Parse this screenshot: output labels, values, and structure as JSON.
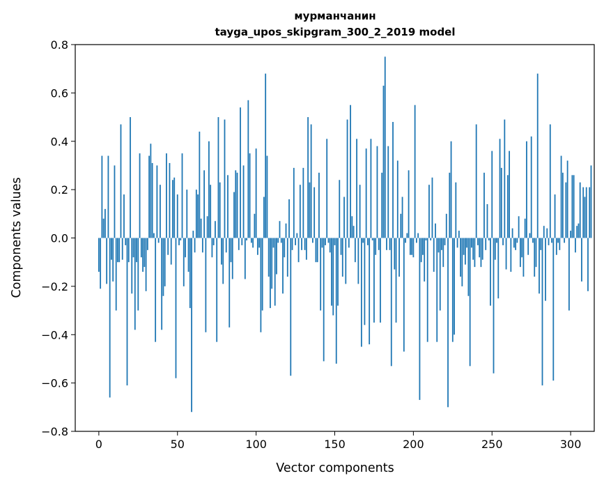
{
  "chart_data": {
    "type": "bar",
    "title_line1": "мурманчанин",
    "title_line2": "tayga_upos_skipgram_300_2_2019 model",
    "xlabel": "Vector components",
    "ylabel": "Components values",
    "xlim": [
      -15,
      315
    ],
    "ylim": [
      -0.8,
      0.8
    ],
    "xticks": [
      0,
      50,
      100,
      150,
      200,
      250,
      300
    ],
    "xtick_labels": [
      "0",
      "50",
      "100",
      "150",
      "200",
      "250",
      "300"
    ],
    "yticks": [
      -0.8,
      -0.6,
      -0.4,
      -0.2,
      0.0,
      0.2,
      0.4,
      0.6,
      0.8
    ],
    "ytick_labels": [
      "−0.8",
      "−0.6",
      "−0.4",
      "−0.2",
      "0.0",
      "0.2",
      "0.4",
      "0.6",
      "0.8"
    ],
    "bar_color": "#1f77b4",
    "grid": false,
    "values": [
      -0.14,
      -0.21,
      0.34,
      0.08,
      0.12,
      -0.19,
      0.34,
      -0.66,
      -0.09,
      -0.18,
      0.3,
      -0.3,
      -0.1,
      -0.1,
      0.47,
      -0.09,
      0.18,
      -0.03,
      -0.61,
      -0.1,
      0.5,
      -0.23,
      -0.08,
      -0.38,
      -0.1,
      -0.3,
      0.35,
      -0.08,
      -0.14,
      -0.12,
      -0.22,
      -0.05,
      0.34,
      0.39,
      0.31,
      0.02,
      -0.43,
      0.3,
      -0.02,
      0.22,
      -0.38,
      -0.24,
      -0.2,
      0.35,
      -0.07,
      0.31,
      -0.11,
      0.24,
      0.25,
      -0.58,
      0.18,
      -0.03,
      -0.01,
      0.35,
      -0.2,
      -0.08,
      0.2,
      -0.14,
      -0.29,
      -0.72,
      0.03,
      -0.06,
      0.2,
      0.18,
      0.44,
      0.08,
      -0.06,
      0.28,
      -0.39,
      0.09,
      0.4,
      0.22,
      -0.08,
      -0.03,
      0.07,
      -0.43,
      0.5,
      0.23,
      -0.11,
      -0.19,
      0.49,
      -0.06,
      0.26,
      -0.37,
      -0.1,
      -0.17,
      0.19,
      0.28,
      0.27,
      -0.05,
      0.54,
      -0.03,
      0.3,
      -0.17,
      -0.01,
      0.57,
      0.35,
      -0.02,
      -0.04,
      0.1,
      0.37,
      -0.07,
      -0.04,
      -0.39,
      -0.3,
      0.17,
      0.68,
      0.34,
      -0.16,
      -0.29,
      -0.21,
      -0.04,
      -0.28,
      -0.15,
      -0.02,
      0.07,
      -0.02,
      -0.23,
      -0.08,
      0.06,
      -0.16,
      0.16,
      -0.57,
      -0.05,
      0.29,
      -0.03,
      0.02,
      -0.1,
      0.22,
      -0.05,
      0.29,
      -0.05,
      -0.09,
      0.5,
      0.23,
      0.47,
      -0.02,
      0.21,
      -0.1,
      -0.1,
      0.27,
      -0.3,
      -0.04,
      -0.51,
      -0.03,
      0.41,
      -0.02,
      -0.06,
      -0.28,
      -0.32,
      -0.03,
      -0.52,
      -0.28,
      0.24,
      -0.07,
      -0.16,
      0.17,
      -0.19,
      0.49,
      -0.04,
      0.55,
      0.09,
      0.05,
      -0.1,
      0.41,
      -0.19,
      0.22,
      -0.45,
      -0.02,
      -0.36,
      0.37,
      -0.03,
      -0.44,
      0.41,
      -0.01,
      -0.35,
      -0.07,
      0.38,
      -0.05,
      -0.35,
      0.27,
      0.63,
      0.75,
      -0.05,
      0.38,
      -0.05,
      -0.53,
      0.48,
      -0.13,
      -0.35,
      0.32,
      -0.16,
      0.1,
      0.17,
      -0.47,
      -0.02,
      0.02,
      0.28,
      -0.07,
      -0.07,
      -0.08,
      0.55,
      -0.02,
      0.02,
      -0.67,
      -0.1,
      -0.07,
      -0.18,
      -0.01,
      -0.43,
      0.22,
      -0.01,
      0.25,
      -0.14,
      0.06,
      -0.43,
      -0.06,
      -0.3,
      -0.05,
      -0.12,
      -0.03,
      0.1,
      -0.7,
      0.27,
      0.4,
      -0.43,
      -0.4,
      0.23,
      -0.04,
      0.03,
      -0.16,
      -0.2,
      -0.07,
      -0.11,
      -0.04,
      -0.24,
      -0.53,
      -0.04,
      -0.09,
      -0.12,
      0.47,
      -0.03,
      -0.08,
      -0.12,
      -0.09,
      0.27,
      -0.05,
      0.14,
      -0.01,
      -0.28,
      0.36,
      -0.56,
      -0.09,
      -0.02,
      -0.25,
      0.41,
      0.29,
      -0.03,
      0.49,
      -0.13,
      0.26,
      0.36,
      -0.14,
      0.04,
      -0.04,
      -0.05,
      -0.02,
      0.09,
      -0.12,
      -0.08,
      -0.16,
      0.08,
      0.4,
      -0.07,
      0.02,
      0.42,
      -0.02,
      -0.16,
      -0.12,
      0.68,
      -0.23,
      -0.05,
      -0.61,
      0.05,
      -0.26,
      0.04,
      -0.03,
      0.47,
      -0.02,
      -0.59,
      0.18,
      -0.07,
      -0.02,
      -0.05,
      0.34,
      0.27,
      -0.02,
      0.23,
      0.32,
      -0.3,
      0.03,
      0.26,
      0.26,
      -0.06,
      0.05,
      0.06,
      0.23,
      -0.18,
      0.21,
      0.17,
      0.21,
      -0.22,
      0.21,
      0.3
    ]
  }
}
